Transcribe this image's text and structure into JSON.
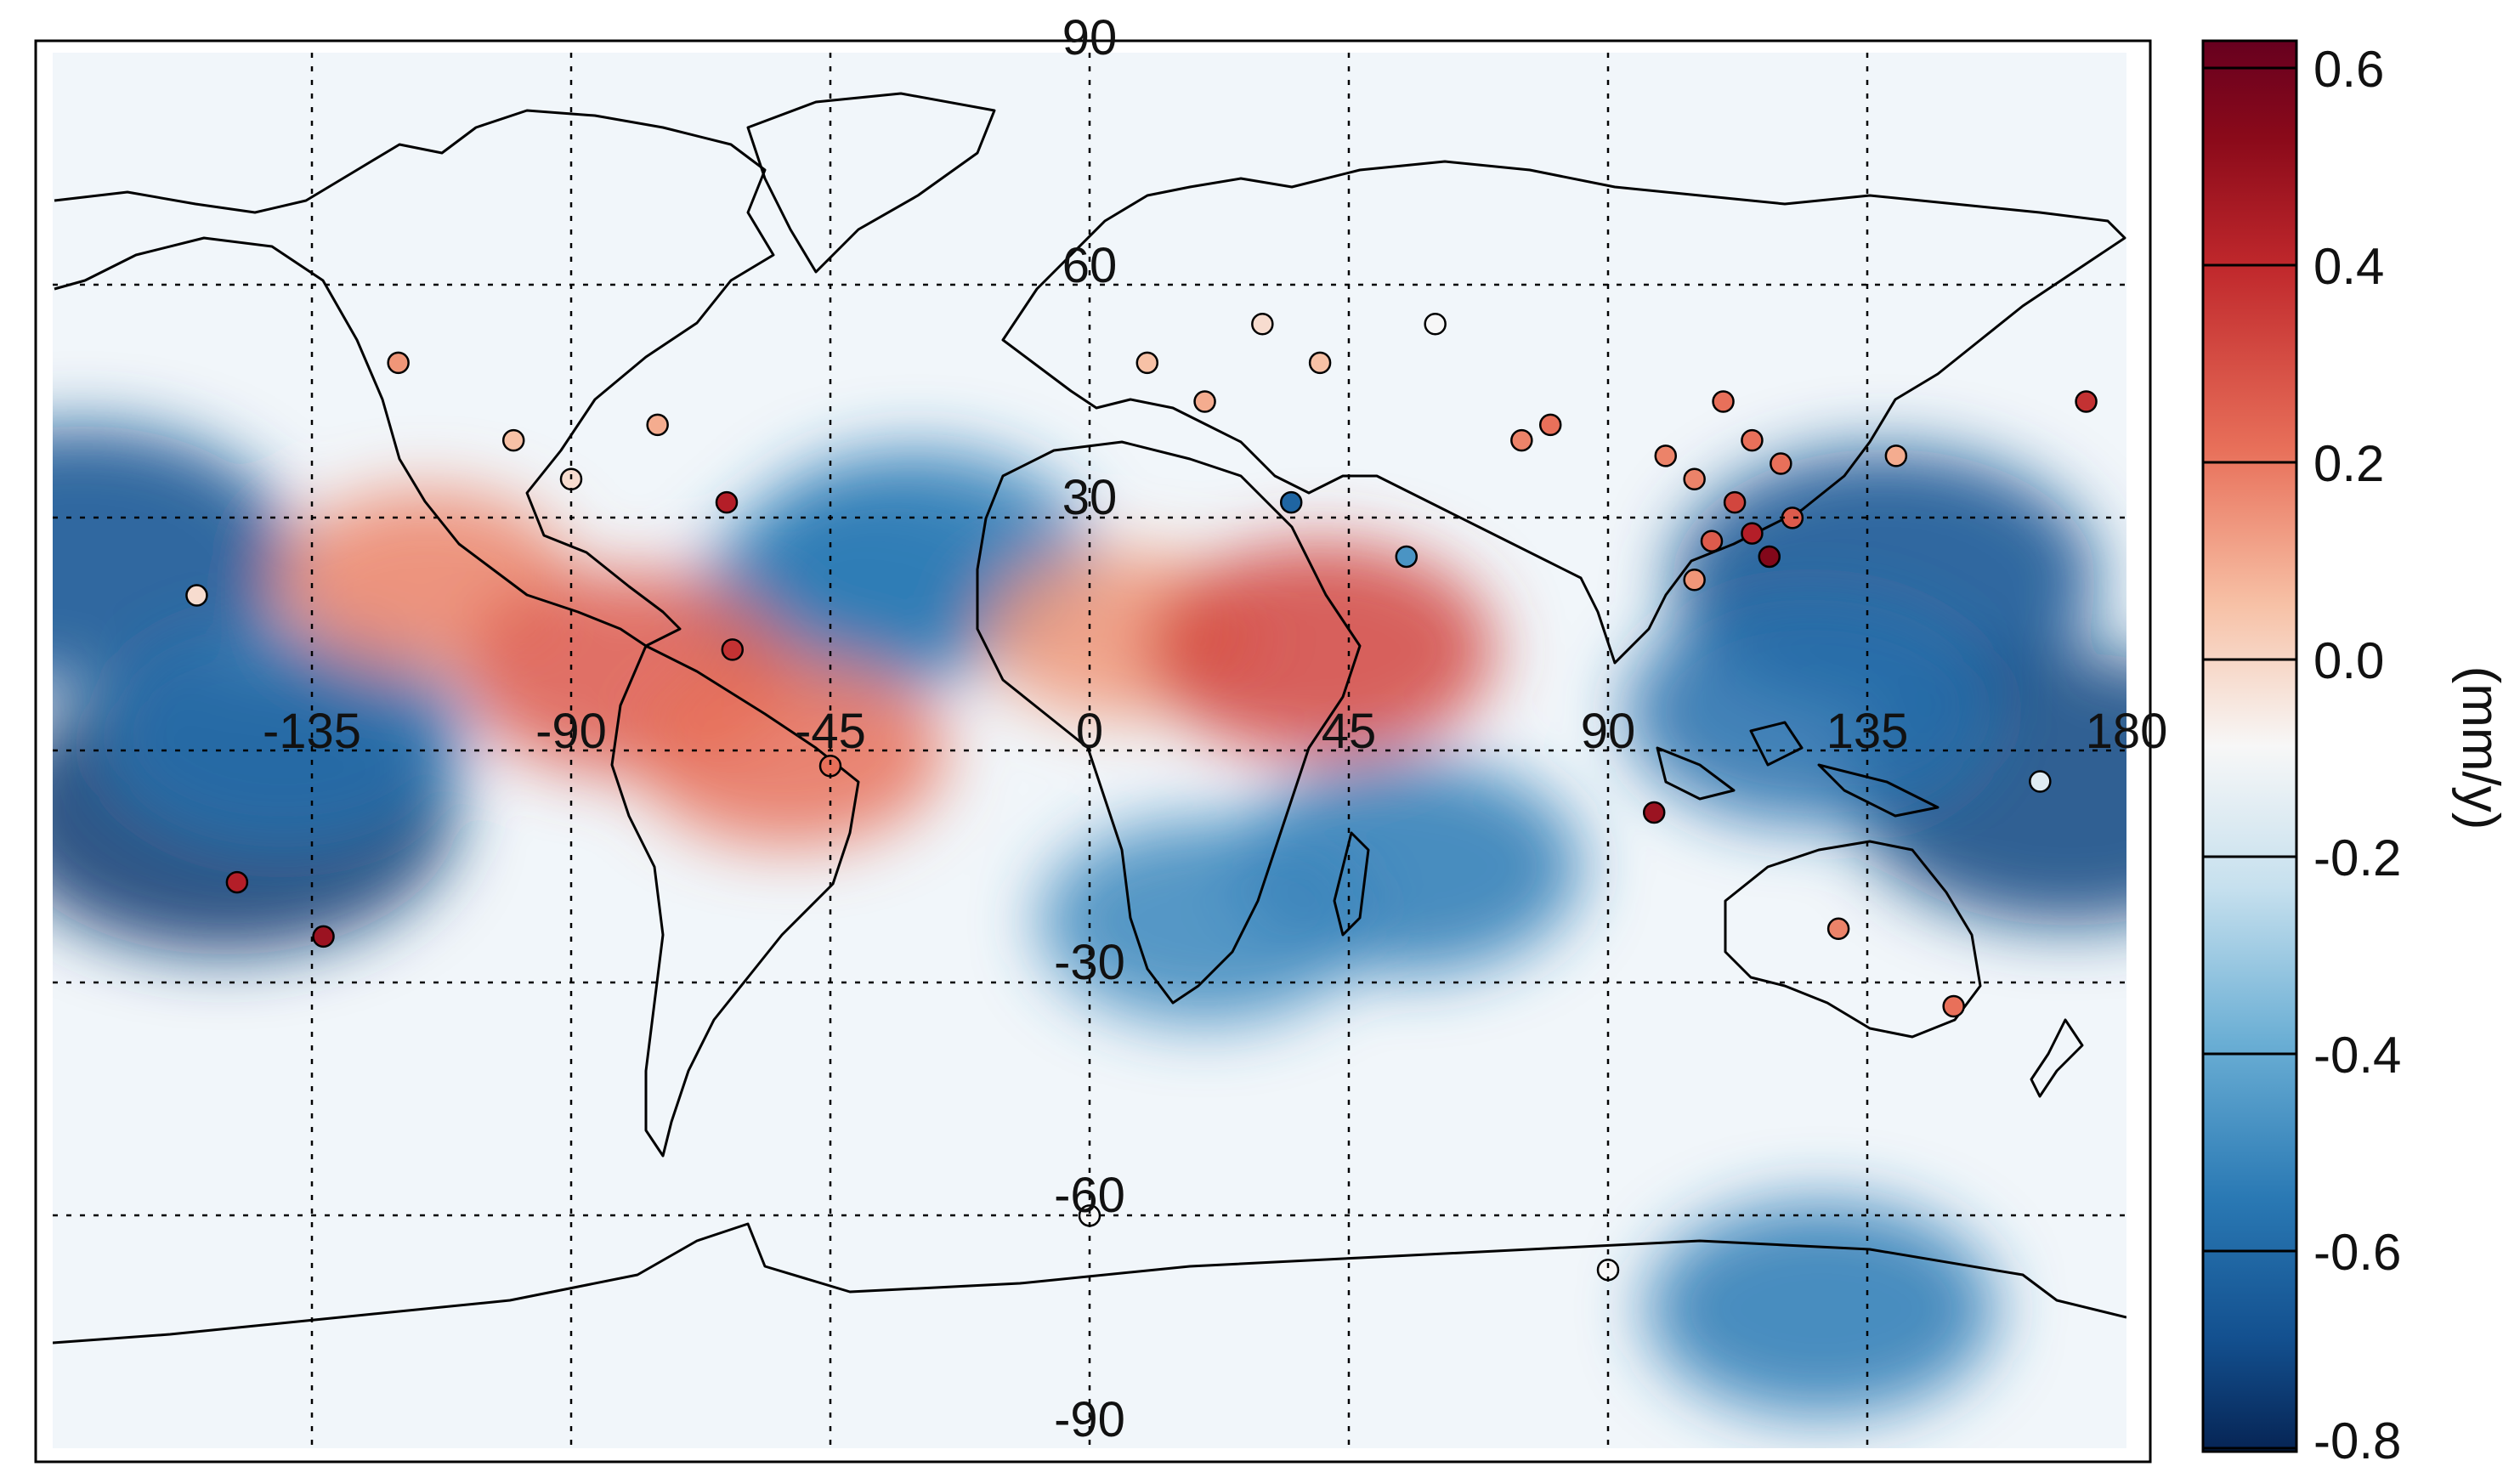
{
  "map": {
    "projection": "equirectangular",
    "lon_ticks": [
      "-135",
      "-90",
      "-45",
      "0",
      "45",
      "90",
      "135",
      "180"
    ],
    "lat_ticks": [
      "90",
      "60",
      "30",
      "-30",
      "-60",
      "-90"
    ],
    "grid": "dotted"
  },
  "colorbar": {
    "label": "(mm/y)",
    "ticks": [
      "0.6",
      "0.4",
      "0.2",
      "0.0",
      "-0.2",
      "-0.4",
      "-0.6",
      "-0.8"
    ],
    "range": [
      -0.8,
      0.6
    ],
    "colors": {
      "strong_positive": "#8b0a1a",
      "positive": "#e8705a",
      "neutral": "#f7f7f7",
      "negative": "#3a8dc3",
      "strong_negative": "#0b2d62"
    }
  },
  "chart_data": {
    "type": "heatmap",
    "description_units": "mm/y",
    "anomalies": [
      {
        "lon": -175,
        "lat": 25,
        "value": -0.6
      },
      {
        "lon": -150,
        "lat": -8,
        "value": -0.7
      },
      {
        "lon": -140,
        "lat": 2,
        "value": -0.45
      },
      {
        "lon": -115,
        "lat": 22,
        "value": 0.25
      },
      {
        "lon": -40,
        "lat": 20,
        "value": -0.35
      },
      {
        "lon": -30,
        "lat": 25,
        "value": -0.4
      },
      {
        "lon": 5,
        "lat": 15,
        "value": 0.2
      },
      {
        "lon": 40,
        "lat": 13,
        "value": 0.4
      },
      {
        "lon": 55,
        "lat": -15,
        "value": -0.4
      },
      {
        "lon": 20,
        "lat": -22,
        "value": -0.35
      },
      {
        "lon": 138,
        "lat": 22,
        "value": -0.6
      },
      {
        "lon": 170,
        "lat": -5,
        "value": -0.65
      },
      {
        "lon": 125,
        "lat": 5,
        "value": -0.45
      },
      {
        "lon": -80,
        "lat": 10,
        "value": 0.35
      },
      {
        "lon": -52,
        "lat": 0,
        "value": 0.3
      },
      {
        "lon": 127,
        "lat": -72,
        "value": -0.4
      }
    ],
    "stations": [
      {
        "lon": 110,
        "lat": 45,
        "value": 0.3
      },
      {
        "lon": 115,
        "lat": 40,
        "value": 0.3
      },
      {
        "lon": 105,
        "lat": 35,
        "value": 0.25
      },
      {
        "lon": 112,
        "lat": 32,
        "value": 0.4
      },
      {
        "lon": 115,
        "lat": 28,
        "value": 0.5
      },
      {
        "lon": 118,
        "lat": 25,
        "value": 0.6
      },
      {
        "lon": 122,
        "lat": 30,
        "value": 0.35
      },
      {
        "lon": 100,
        "lat": 38,
        "value": 0.25
      },
      {
        "lon": 108,
        "lat": 27,
        "value": 0.35
      },
      {
        "lon": 120,
        "lat": 37,
        "value": 0.3
      },
      {
        "lon": 75,
        "lat": 40,
        "value": 0.25
      },
      {
        "lon": 80,
        "lat": 42,
        "value": 0.3
      },
      {
        "lon": 105,
        "lat": 22,
        "value": 0.2
      },
      {
        "lon": 98,
        "lat": -8,
        "value": 0.55
      },
      {
        "lon": -63,
        "lat": 32,
        "value": 0.5
      },
      {
        "lon": -62,
        "lat": 13,
        "value": 0.45
      },
      {
        "lon": -45,
        "lat": -2,
        "value": 0.3
      },
      {
        "lon": -148,
        "lat": -17,
        "value": 0.5
      },
      {
        "lon": -133,
        "lat": -24,
        "value": 0.55
      },
      {
        "lon": 173,
        "lat": 45,
        "value": 0.45
      },
      {
        "lon": 35,
        "lat": 32,
        "value": -0.5
      },
      {
        "lon": 55,
        "lat": 25,
        "value": -0.3
      },
      {
        "lon": 130,
        "lat": -23,
        "value": 0.25
      },
      {
        "lon": 150,
        "lat": -33,
        "value": 0.3
      },
      {
        "lon": 165,
        "lat": -4,
        "value": -0.05
      },
      {
        "lon": -155,
        "lat": 20,
        "value": 0.05
      },
      {
        "lon": -100,
        "lat": 40,
        "value": 0.1
      },
      {
        "lon": -90,
        "lat": 35,
        "value": 0.05
      },
      {
        "lon": -75,
        "lat": 42,
        "value": 0.15
      },
      {
        "lon": -120,
        "lat": 50,
        "value": 0.2
      },
      {
        "lon": 10,
        "lat": 50,
        "value": 0.1
      },
      {
        "lon": 20,
        "lat": 45,
        "value": 0.15
      },
      {
        "lon": 30,
        "lat": 55,
        "value": 0.05
      },
      {
        "lon": 40,
        "lat": 50,
        "value": 0.1
      },
      {
        "lon": 60,
        "lat": 55,
        "value": 0.0
      },
      {
        "lon": 140,
        "lat": 38,
        "value": 0.15
      },
      {
        "lon": 0,
        "lat": -60,
        "value": 0.0
      },
      {
        "lon": 90,
        "lat": -67,
        "value": 0.0
      }
    ]
  }
}
